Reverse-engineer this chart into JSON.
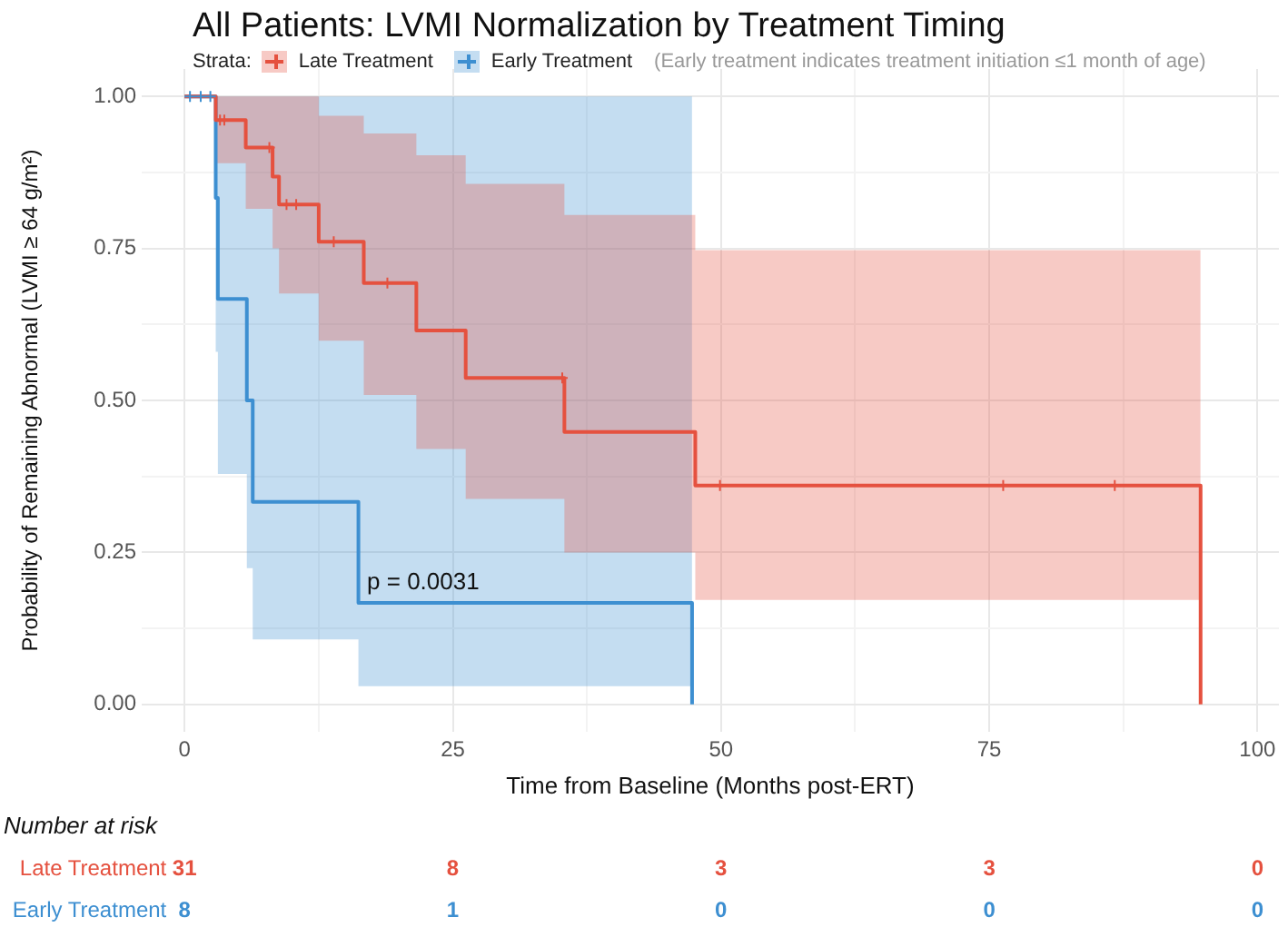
{
  "chart_data": [
    {
      "type": "step",
      "title": "All Patients: LVMI Normalization by Treatment Timing",
      "xlabel": "Time from Baseline (Months post-ERT)",
      "ylabel": "Probability of Remaining Abnormal (LVMI ≥ 64 g/m²)",
      "legend_title": "Strata:",
      "legend": "top",
      "grid": true,
      "line_style": "solid",
      "annotations": [
        "(Early treatment indicates treatment initiation ≤1 month of age)",
        "p = 0.0031"
      ],
      "xlim": [
        -4,
        102
      ],
      "xticks": [
        0,
        {
          "value": 12.5,
          "label": null
        },
        25,
        {
          "value": 37.5,
          "label": null
        },
        50,
        {
          "value": 62.5,
          "label": null
        },
        75,
        {
          "value": 87.5,
          "label": null
        },
        100
      ],
      "ylim": [
        -0.045,
        1.045
      ],
      "yticks": [
        {
          "value": 0,
          "label": "0.00"
        },
        {
          "value": 0.125,
          "label": null
        },
        {
          "value": 0.25,
          "label": "0.25"
        },
        {
          "value": 0.375,
          "label": null
        },
        {
          "value": 0.5,
          "label": "0.50"
        },
        {
          "value": 0.625,
          "label": null
        },
        {
          "value": 0.75,
          "label": "0.75"
        },
        {
          "value": 0.875,
          "label": null
        },
        {
          "value": 1,
          "label": "1.00"
        }
      ],
      "series": [
        {
          "name": "Late Treatment",
          "color": "#e5513f",
          "x": [
            0,
            2.9,
            5.7,
            8.2,
            8.8,
            12.5,
            16.7,
            21.6,
            26.2,
            35.4,
            47.6,
            94.7
          ],
          "values": [
            1,
            0.961,
            0.916,
            0.868,
            0.822,
            0.761,
            0.693,
            0.615,
            0.537,
            0.448,
            0.36,
            0
          ],
          "lower": [
            1,
            0.89,
            0.815,
            0.75,
            0.676,
            0.598,
            0.509,
            0.42,
            0.338,
            0.25,
            0.172,
            0.172
          ],
          "upper": [
            1,
            1,
            1,
            1,
            1,
            0.968,
            0.939,
            0.903,
            0.856,
            0.805,
            0.747,
            0.747
          ]
        },
        {
          "name": "Early Treatment",
          "color": "#3d8fd1",
          "x": [
            0,
            2.9,
            3.1,
            5.8,
            6.35,
            16.2,
            47.3
          ],
          "values": [
            1,
            0.833,
            0.667,
            0.5,
            0.333,
            0.167,
            0
          ],
          "lower": [
            1,
            0.58,
            0.379,
            0.224,
            0.107,
            0.03,
            0.03
          ],
          "upper": [
            1,
            1,
            1,
            1,
            1,
            1,
            1
          ]
        },
        {
          "type": "scatter",
          "marker": "cross",
          "color": "#e5513f",
          "x": [
            3.3,
            3.7,
            7.9,
            9.5,
            10.4,
            13.9,
            18.9,
            35.2,
            49.9,
            76.3,
            86.7
          ],
          "values": [
            0.961,
            0.961,
            0.916,
            0.822,
            0.822,
            0.761,
            0.693,
            0.537,
            0.36,
            0.36,
            0.36
          ]
        },
        {
          "type": "scatter",
          "marker": "cross",
          "color": "#3d8fd1",
          "x": [
            0.5,
            1.5,
            2.4
          ],
          "values": [
            1,
            1,
            1
          ]
        }
      ]
    },
    {
      "type": "other",
      "title": "Number at risk",
      "y_categories": [
        "Late Treatment",
        "Early Treatment"
      ],
      "cell_labels": [
        [
          "31",
          "8",
          "3",
          "3",
          "0"
        ],
        [
          "8",
          "1",
          "0",
          "0",
          "0"
        ]
      ],
      "colors": [
        "#e5513f",
        "#3d8fd1"
      ]
    }
  ]
}
